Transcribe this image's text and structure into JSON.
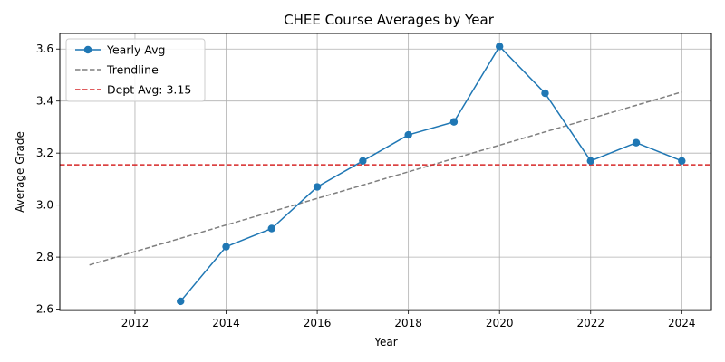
{
  "chart_data": {
    "type": "line",
    "title": "CHEE Course Averages by Year",
    "xlabel": "Year",
    "ylabel": "Average Grade",
    "xlim": [
      2010.35,
      2024.65
    ],
    "ylim": [
      2.595,
      3.66
    ],
    "xticks": [
      2012,
      2014,
      2016,
      2018,
      2020,
      2022,
      2024
    ],
    "yticks": [
      2.6,
      2.8,
      3.0,
      3.2,
      3.4,
      3.6
    ],
    "grid": true,
    "legend_position": "top-left",
    "series": [
      {
        "name": "Yearly Avg",
        "style": "solid-with-markers",
        "color": "#1f77b4",
        "x": [
          2013,
          2014,
          2015,
          2016,
          2017,
          2018,
          2019,
          2020,
          2021,
          2022,
          2023,
          2024
        ],
        "y": [
          2.63,
          2.84,
          2.91,
          3.07,
          3.17,
          3.27,
          3.32,
          3.61,
          3.43,
          3.17,
          3.24,
          3.17
        ]
      },
      {
        "name": "Trendline",
        "style": "dashed",
        "color": "#7f7f7f",
        "x": [
          2011,
          2024
        ],
        "y": [
          2.77,
          3.435
        ]
      },
      {
        "name": "Dept Avg: 3.15",
        "style": "dashed",
        "color": "#d62728",
        "hline": 3.155
      }
    ]
  }
}
